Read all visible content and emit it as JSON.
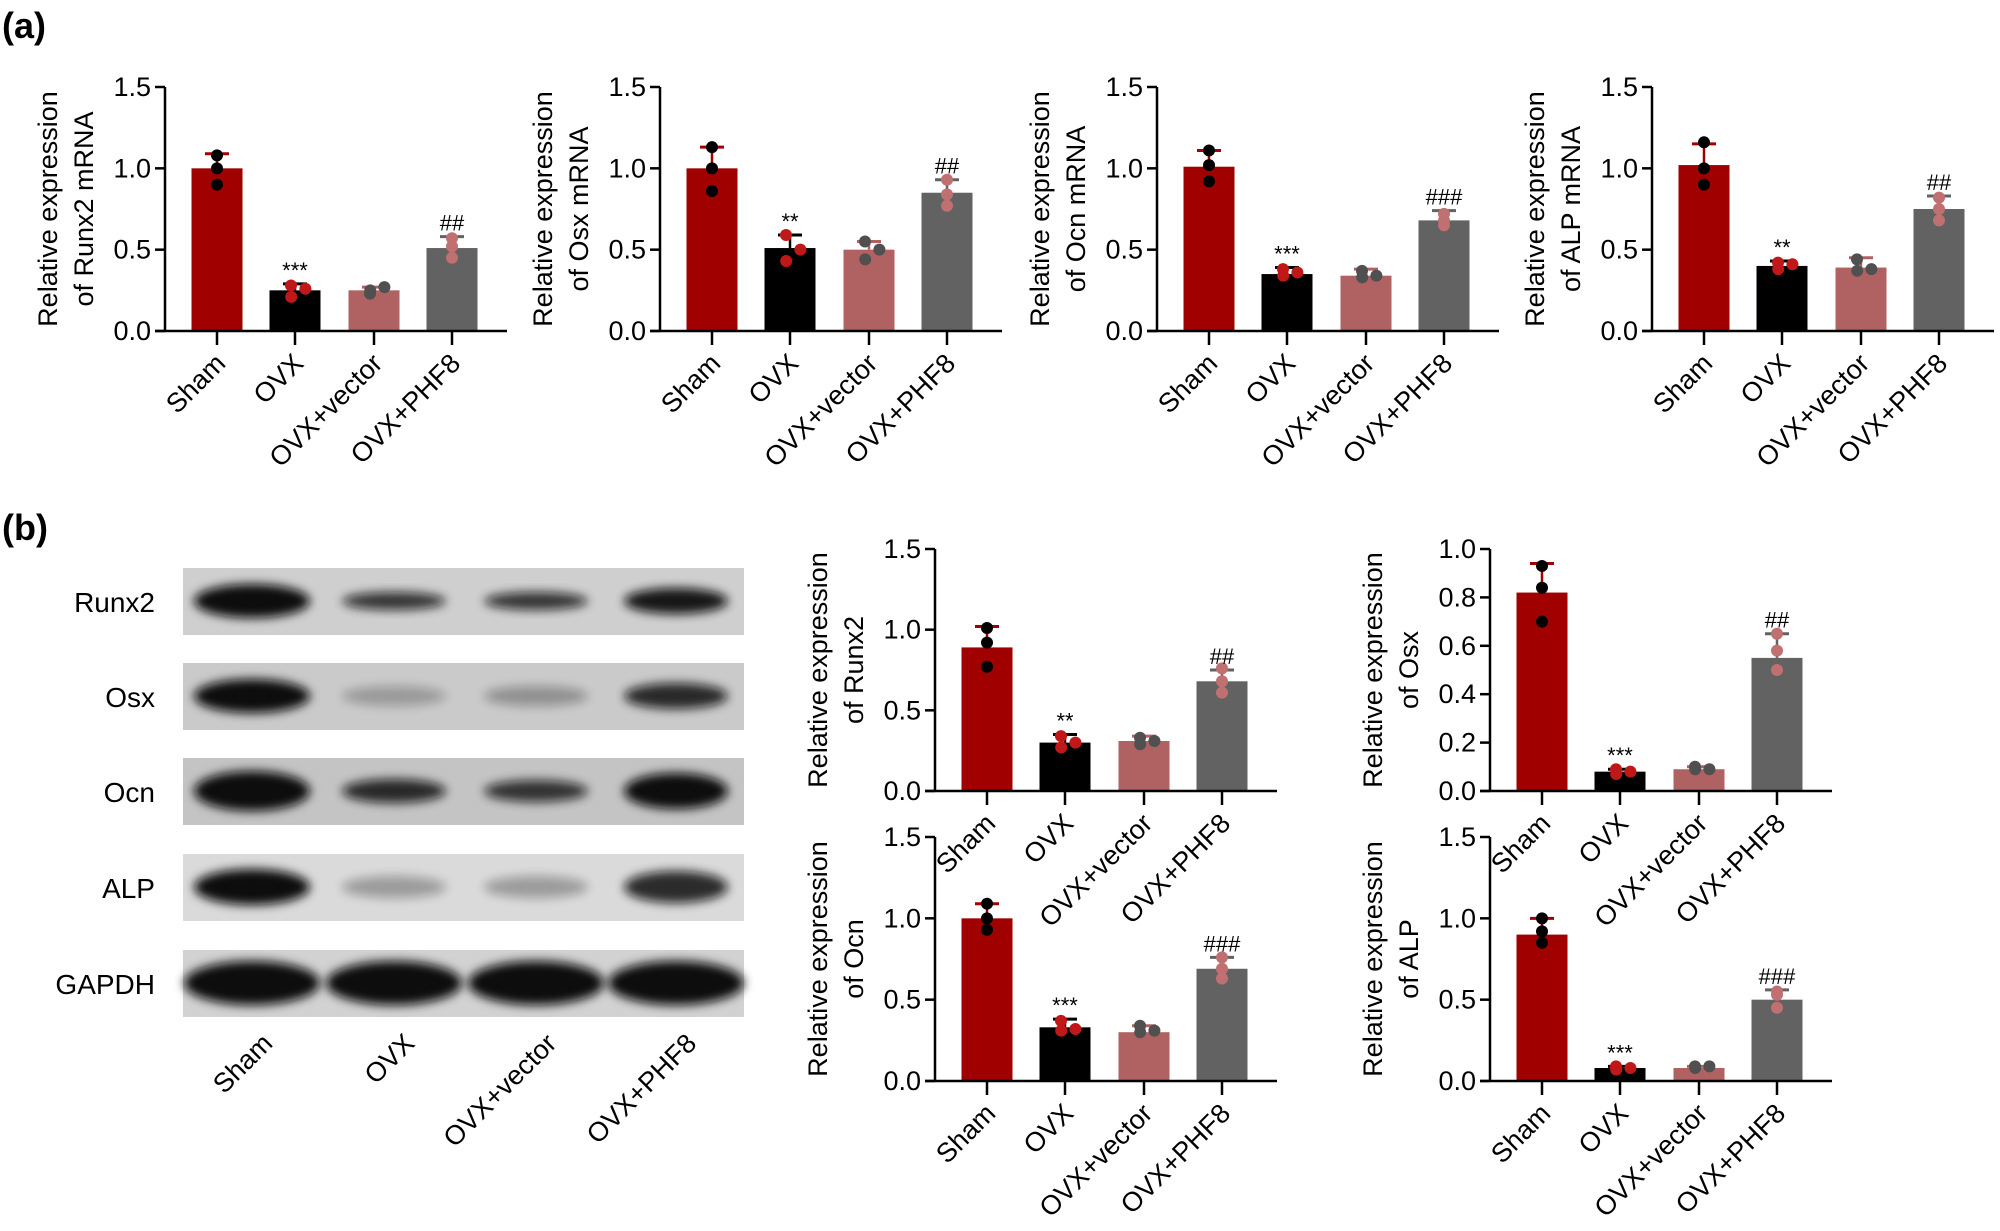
{
  "panels": {
    "a": "(a)",
    "b": "(b)"
  },
  "colors": {
    "Sham": "#a00000",
    "OVX": "#000000",
    "OVX+vector": "#b06262",
    "OVX+PHF8": "#626262",
    "pt_Sham": "#000000",
    "pt_OVX": "#c01818",
    "pt_OVX+vector": "#505050",
    "pt_OVX+PHF8": "#c07070"
  },
  "blot": {
    "rows": [
      "Runx2",
      "Osx",
      "Ocn",
      "ALP",
      "GAPDH"
    ],
    "lanes": [
      "Sham",
      "OVX",
      "OVX+vector",
      "OVX+PHF8"
    ]
  },
  "chart_data": [
    {
      "id": "a1",
      "type": "bar",
      "panel": "a",
      "ylabel": [
        "Relative expression",
        "of Runx2 mRNA"
      ],
      "ylim": [
        0,
        1.5
      ],
      "yticks": [
        "0.0",
        "0.5",
        "1.0",
        "1.5"
      ],
      "categories": [
        "Sham",
        "OVX",
        "OVX+vector",
        "OVX+PHF8"
      ],
      "values": [
        1.0,
        0.25,
        0.25,
        0.51
      ],
      "error_top": [
        1.09,
        0.29,
        0.27,
        0.58
      ],
      "points": [
        [
          1.08,
          1.0,
          0.9
        ],
        [
          0.28,
          0.26,
          0.21
        ],
        [
          0.23,
          0.27,
          0.25
        ],
        [
          0.57,
          0.52,
          0.45
        ]
      ],
      "annotations": [
        "",
        "***",
        "",
        "##"
      ]
    },
    {
      "id": "a2",
      "type": "bar",
      "panel": "a",
      "ylabel": [
        "Relative expression",
        "of Osx mRNA"
      ],
      "ylim": [
        0,
        1.5
      ],
      "yticks": [
        "0.0",
        "0.5",
        "1.0",
        "1.5"
      ],
      "categories": [
        "Sham",
        "OVX",
        "OVX+vector",
        "OVX+PHF8"
      ],
      "values": [
        1.0,
        0.51,
        0.5,
        0.85
      ],
      "error_top": [
        1.13,
        0.59,
        0.55,
        0.93
      ],
      "points": [
        [
          1.13,
          1.0,
          0.86
        ],
        [
          0.59,
          0.5,
          0.43
        ],
        [
          0.55,
          0.5,
          0.44
        ],
        [
          0.93,
          0.84,
          0.77
        ]
      ],
      "annotations": [
        "",
        "**",
        "",
        "##"
      ]
    },
    {
      "id": "a3",
      "type": "bar",
      "panel": "a",
      "ylabel": [
        "Relative expression",
        "of Ocn mRNA"
      ],
      "ylim": [
        0,
        1.5
      ],
      "yticks": [
        "0.0",
        "0.5",
        "1.0",
        "1.5"
      ],
      "categories": [
        "Sham",
        "OVX",
        "OVX+vector",
        "OVX+PHF8"
      ],
      "values": [
        1.01,
        0.35,
        0.34,
        0.68
      ],
      "error_top": [
        1.11,
        0.39,
        0.38,
        0.74
      ],
      "points": [
        [
          1.11,
          1.02,
          0.92
        ],
        [
          0.38,
          0.36,
          0.34
        ],
        [
          0.37,
          0.34,
          0.33
        ],
        [
          0.72,
          0.68,
          0.65
        ]
      ],
      "annotations": [
        "",
        "***",
        "",
        "###"
      ]
    },
    {
      "id": "a4",
      "type": "bar",
      "panel": "a",
      "ylabel": [
        "Relative expression",
        "of ALP mRNA"
      ],
      "ylim": [
        0,
        1.5
      ],
      "yticks": [
        "0.0",
        "0.5",
        "1.0",
        "1.5"
      ],
      "categories": [
        "Sham",
        "OVX",
        "OVX+vector",
        "OVX+PHF8"
      ],
      "values": [
        1.02,
        0.4,
        0.39,
        0.75
      ],
      "error_top": [
        1.15,
        0.43,
        0.45,
        0.83
      ],
      "points": [
        [
          1.16,
          1.0,
          0.9
        ],
        [
          0.42,
          0.41,
          0.38
        ],
        [
          0.44,
          0.38,
          0.37
        ],
        [
          0.82,
          0.75,
          0.68
        ]
      ],
      "annotations": [
        "",
        "**",
        "",
        "##"
      ]
    },
    {
      "id": "b1",
      "type": "bar",
      "panel": "b",
      "ylabel": [
        "Relative expression",
        "of Runx2"
      ],
      "ylim": [
        0,
        1.5
      ],
      "yticks": [
        "0.0",
        "0.5",
        "1.0",
        "1.5"
      ],
      "categories": [
        "Sham",
        "OVX",
        "OVX+vector",
        "OVX+PHF8"
      ],
      "values": [
        0.89,
        0.3,
        0.31,
        0.68
      ],
      "error_top": [
        1.02,
        0.35,
        0.34,
        0.75
      ],
      "points": [
        [
          1.01,
          0.92,
          0.77
        ],
        [
          0.34,
          0.3,
          0.27
        ],
        [
          0.33,
          0.31,
          0.29
        ],
        [
          0.76,
          0.68,
          0.61
        ]
      ],
      "annotations": [
        "",
        "**",
        "",
        "##"
      ]
    },
    {
      "id": "b2",
      "type": "bar",
      "panel": "b",
      "ylabel": [
        "Relative expression",
        "of Osx"
      ],
      "ylim": [
        0,
        1.0
      ],
      "yticks": [
        "0.0",
        "0.2",
        "0.4",
        "0.6",
        "0.8",
        "1.0"
      ],
      "categories": [
        "Sham",
        "OVX",
        "OVX+vector",
        "OVX+PHF8"
      ],
      "values": [
        0.82,
        0.08,
        0.09,
        0.55
      ],
      "error_top": [
        0.94,
        0.09,
        0.1,
        0.65
      ],
      "points": [
        [
          0.93,
          0.84,
          0.7
        ],
        [
          0.09,
          0.08,
          0.07
        ],
        [
          0.1,
          0.09,
          0.09
        ],
        [
          0.65,
          0.58,
          0.5
        ]
      ],
      "annotations": [
        "",
        "***",
        "",
        "##"
      ]
    },
    {
      "id": "b3",
      "type": "bar",
      "panel": "b",
      "ylabel": [
        "Relative expression",
        "of Ocn"
      ],
      "ylim": [
        0,
        1.5
      ],
      "yticks": [
        "0.0",
        "0.5",
        "1.0",
        "1.5"
      ],
      "categories": [
        "Sham",
        "OVX",
        "OVX+vector",
        "OVX+PHF8"
      ],
      "values": [
        1.0,
        0.33,
        0.3,
        0.69
      ],
      "error_top": [
        1.09,
        0.38,
        0.34,
        0.76
      ],
      "points": [
        [
          1.09,
          1.0,
          0.93
        ],
        [
          0.37,
          0.32,
          0.31
        ],
        [
          0.34,
          0.31,
          0.3
        ],
        [
          0.76,
          0.69,
          0.63
        ]
      ],
      "annotations": [
        "",
        "***",
        "",
        "###"
      ]
    },
    {
      "id": "b4",
      "type": "bar",
      "panel": "b",
      "ylabel": [
        "Relative expression",
        "of ALP"
      ],
      "ylim": [
        0,
        1.5
      ],
      "yticks": [
        "0.0",
        "0.5",
        "1.0",
        "1.5"
      ],
      "categories": [
        "Sham",
        "OVX",
        "OVX+vector",
        "OVX+PHF8"
      ],
      "values": [
        0.9,
        0.08,
        0.08,
        0.5
      ],
      "error_top": [
        1.0,
        0.09,
        0.09,
        0.56
      ],
      "points": [
        [
          1.0,
          0.92,
          0.85
        ],
        [
          0.09,
          0.08,
          0.07
        ],
        [
          0.09,
          0.09,
          0.08
        ],
        [
          0.55,
          0.53,
          0.45
        ]
      ],
      "annotations": [
        "",
        "***",
        "",
        "###"
      ]
    }
  ]
}
